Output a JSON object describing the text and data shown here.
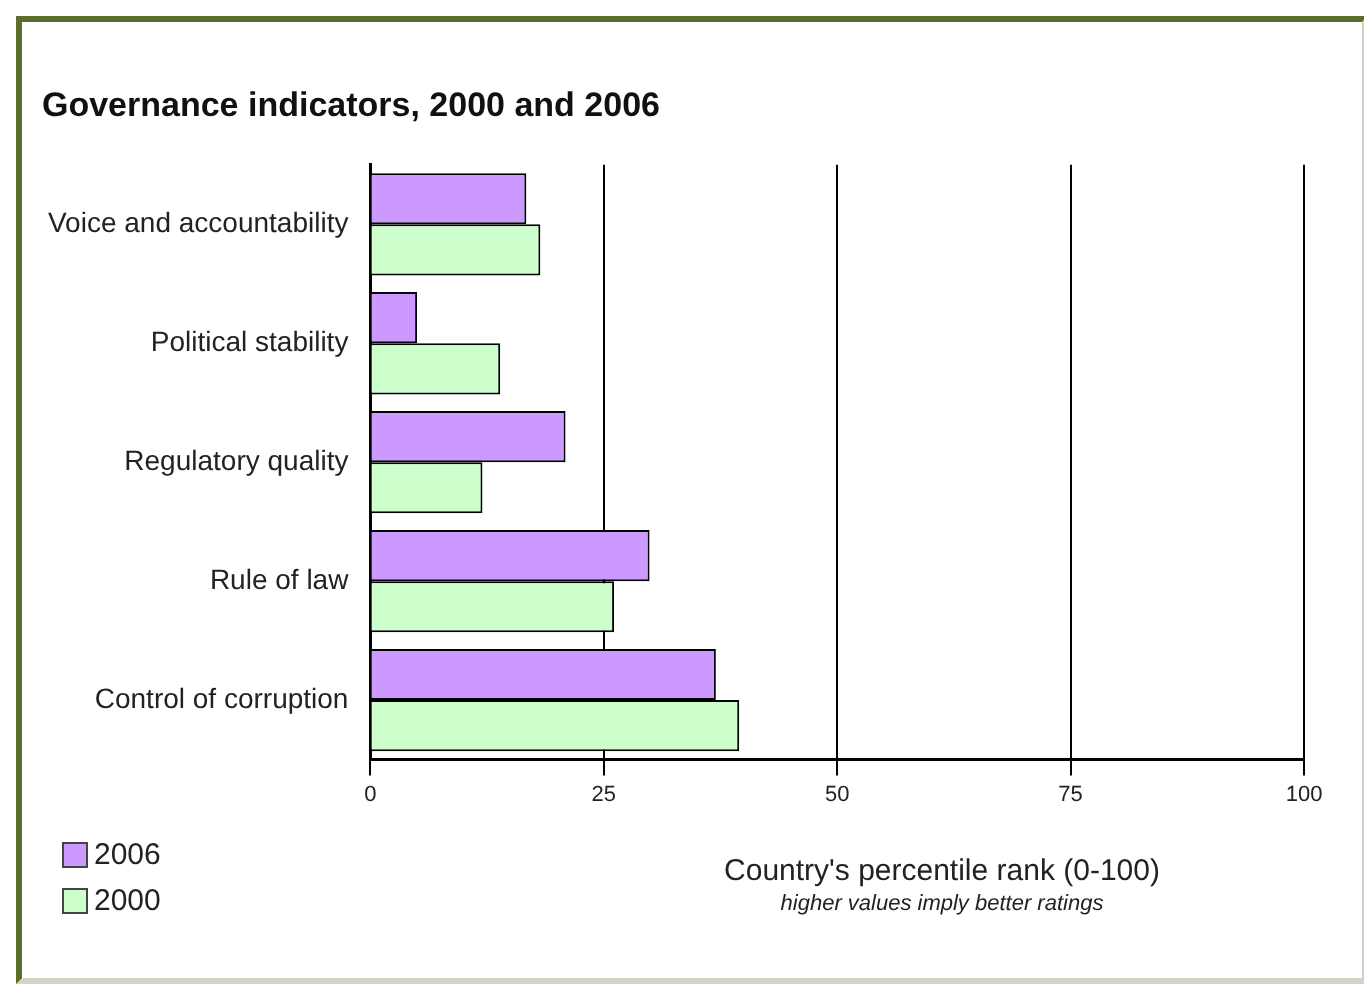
{
  "chart_data": {
    "type": "bar",
    "orientation": "horizontal",
    "title": "Governance indicators, 2000 and 2006",
    "xlabel": "Country's percentile rank (0-100)",
    "annotations": [
      "higher values imply better ratings"
    ],
    "categories": [
      "Voice and accountability",
      "Political stability",
      "Regulatory quality",
      "Rule of law",
      "Control of corruption"
    ],
    "series": [
      {
        "name": "2006",
        "color": "#cc99ff",
        "values": [
          16.7,
          5,
          20.9,
          29.9,
          37
        ]
      },
      {
        "name": "2000",
        "color": "#ccffcc",
        "values": [
          18.2,
          13.9,
          12,
          26.1,
          39.5
        ]
      }
    ],
    "xlim": [
      0,
      100
    ],
    "xticks": [
      0,
      25,
      50,
      75,
      100
    ],
    "grid": "x",
    "legend": "bottom left"
  }
}
